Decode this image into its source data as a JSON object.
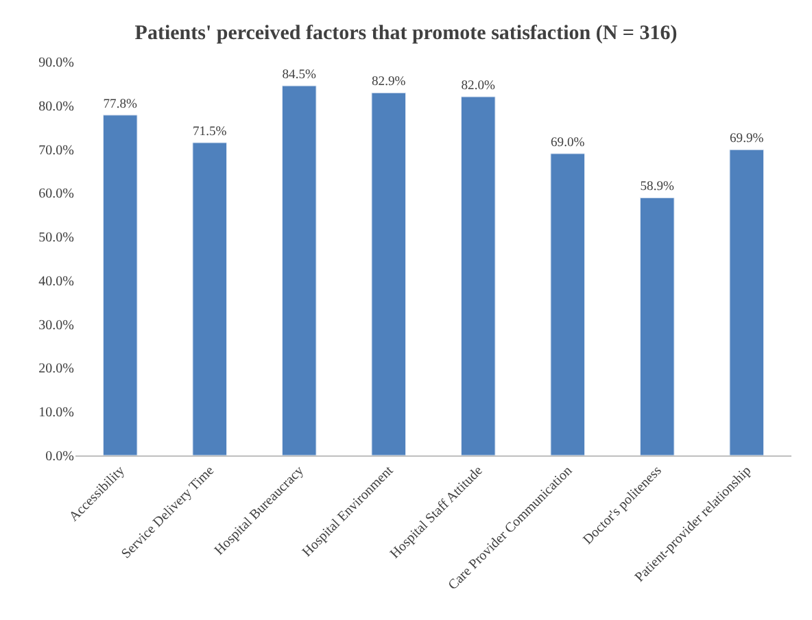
{
  "chart_data": {
    "type": "bar",
    "title": "Patients' perceived factors that promote satisfaction (N = 316)",
    "categories": [
      "Accessibility",
      "Service Delivery Time",
      "Hospital Bureaucracy",
      "Hospital Environment",
      "Hospital Staff Attitude",
      "Care Provider Communication",
      "Doctor's politeness",
      "Patient-provider relationship"
    ],
    "values": [
      77.8,
      71.5,
      84.5,
      82.9,
      82.0,
      69.0,
      58.9,
      69.9
    ],
    "value_labels": [
      "77.8%",
      "71.5%",
      "84.5%",
      "82.9%",
      "82.0%",
      "69.0%",
      "58.9%",
      "69.9%"
    ],
    "color": "#4f81bd",
    "ylim": [
      0,
      90
    ],
    "yticks": [
      {
        "value": 0,
        "label": "0.0%"
      },
      {
        "value": 10,
        "label": "10.0%"
      },
      {
        "value": 20,
        "label": "20.0%"
      },
      {
        "value": 30,
        "label": "30.0%"
      },
      {
        "value": 40,
        "label": "40.0%"
      },
      {
        "value": 50,
        "label": "50.0%"
      },
      {
        "value": 60,
        "label": "60.0%"
      },
      {
        "value": 70,
        "label": "70.0%"
      },
      {
        "value": 80,
        "label": "80.0%"
      },
      {
        "value": 90,
        "label": "90.0%"
      }
    ],
    "legend": false
  }
}
